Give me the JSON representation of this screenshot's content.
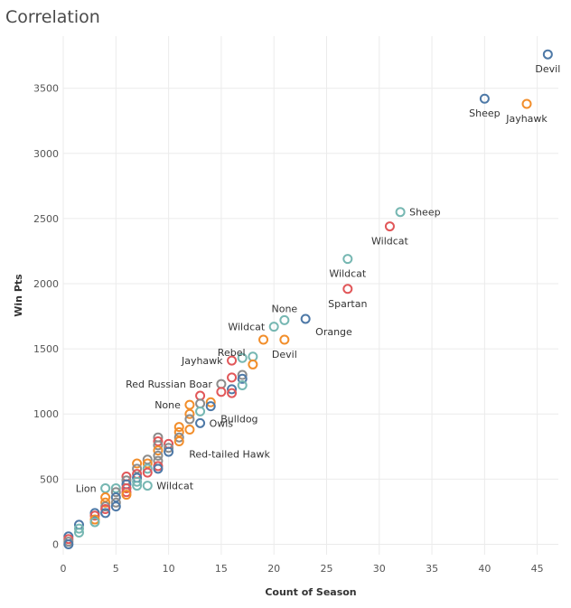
{
  "title": "Correlation",
  "colors": {
    "blue": "#4e79a7",
    "orange": "#f28e2b",
    "teal": "#76b7b2",
    "red": "#e15759",
    "gray": "#8c8c8c",
    "grid": "#ebebeb"
  },
  "chart_data": {
    "type": "scatter",
    "title": "Correlation",
    "xlabel": "Count of Season",
    "ylabel": "Win Pts",
    "xlim": [
      0,
      47
    ],
    "ylim": [
      -80,
      3900
    ],
    "xticks": [
      0,
      5,
      10,
      15,
      20,
      25,
      30,
      35,
      40,
      45
    ],
    "yticks": [
      0,
      500,
      1000,
      1500,
      2000,
      2500,
      3000,
      3500
    ],
    "grid": true,
    "marker": "hollow-circle",
    "points": [
      {
        "x": 46,
        "y": 3760,
        "color": "blue",
        "label": "Devil",
        "lpos": "below"
      },
      {
        "x": 40,
        "y": 3420,
        "color": "blue",
        "label": "Sheep",
        "lpos": "below"
      },
      {
        "x": 44,
        "y": 3380,
        "color": "orange",
        "label": "Jayhawk",
        "lpos": "below"
      },
      {
        "x": 32,
        "y": 2550,
        "color": "teal",
        "label": "Sheep",
        "lpos": "right"
      },
      {
        "x": 31,
        "y": 2440,
        "color": "red",
        "label": "Wildcat",
        "lpos": "below"
      },
      {
        "x": 27,
        "y": 2190,
        "color": "teal",
        "label": "Wildcat",
        "lpos": "below"
      },
      {
        "x": 27,
        "y": 1960,
        "color": "red",
        "label": "Spartan",
        "lpos": "below"
      },
      {
        "x": 23,
        "y": 1730,
        "color": "blue",
        "label": "Orange",
        "lpos": "belowright"
      },
      {
        "x": 21,
        "y": 1720,
        "color": "teal",
        "label": "None",
        "lpos": "above"
      },
      {
        "x": 20,
        "y": 1670,
        "color": "teal",
        "label": "Wildcat",
        "lpos": "left"
      },
      {
        "x": 21,
        "y": 1570,
        "color": "orange",
        "label": "Devil",
        "lpos": "below"
      },
      {
        "x": 19,
        "y": 1570,
        "color": "orange",
        "label": "Rebel",
        "lpos": "leftbelow"
      },
      {
        "x": 18,
        "y": 1440,
        "color": "teal",
        "label": "",
        "lpos": ""
      },
      {
        "x": 17,
        "y": 1430,
        "color": "teal",
        "label": "",
        "lpos": ""
      },
      {
        "x": 18,
        "y": 1380,
        "color": "orange",
        "label": "",
        "lpos": ""
      },
      {
        "x": 16,
        "y": 1410,
        "color": "red",
        "label": "Jayhawk",
        "lpos": "left"
      },
      {
        "x": 17,
        "y": 1300,
        "color": "gray",
        "label": "",
        "lpos": ""
      },
      {
        "x": 17,
        "y": 1270,
        "color": "blue",
        "label": "",
        "lpos": ""
      },
      {
        "x": 16,
        "y": 1280,
        "color": "red",
        "label": "",
        "lpos": ""
      },
      {
        "x": 15,
        "y": 1230,
        "color": "gray",
        "label": "Red Russian Boar",
        "lpos": "left"
      },
      {
        "x": 17,
        "y": 1220,
        "color": "teal",
        "label": "",
        "lpos": ""
      },
      {
        "x": 16,
        "y": 1190,
        "color": "blue",
        "label": "",
        "lpos": ""
      },
      {
        "x": 16,
        "y": 1160,
        "color": "red",
        "label": "",
        "lpos": ""
      },
      {
        "x": 15,
        "y": 1170,
        "color": "red",
        "label": "",
        "lpos": ""
      },
      {
        "x": 13,
        "y": 1140,
        "color": "red",
        "label": "",
        "lpos": ""
      },
      {
        "x": 14,
        "y": 1090,
        "color": "orange",
        "label": "",
        "lpos": ""
      },
      {
        "x": 13,
        "y": 1080,
        "color": "gray",
        "label": "",
        "lpos": ""
      },
      {
        "x": 14,
        "y": 1060,
        "color": "blue",
        "label": "Bulldog",
        "lpos": "belowright"
      },
      {
        "x": 12,
        "y": 1070,
        "color": "orange",
        "label": "None",
        "lpos": "left"
      },
      {
        "x": 13,
        "y": 1020,
        "color": "teal",
        "label": "",
        "lpos": ""
      },
      {
        "x": 12,
        "y": 1000,
        "color": "orange",
        "label": "",
        "lpos": ""
      },
      {
        "x": 13,
        "y": 930,
        "color": "blue",
        "label": "Owls",
        "lpos": "right"
      },
      {
        "x": 12,
        "y": 960,
        "color": "gray",
        "label": "",
        "lpos": ""
      },
      {
        "x": 12,
        "y": 880,
        "color": "orange",
        "label": "",
        "lpos": ""
      },
      {
        "x": 11,
        "y": 900,
        "color": "orange",
        "label": "",
        "lpos": ""
      },
      {
        "x": 11,
        "y": 860,
        "color": "orange",
        "label": "",
        "lpos": ""
      },
      {
        "x": 11,
        "y": 820,
        "color": "gray",
        "label": "",
        "lpos": ""
      },
      {
        "x": 11,
        "y": 790,
        "color": "orange",
        "label": "Red-tailed Hawk",
        "lpos": "belowright"
      },
      {
        "x": 10,
        "y": 770,
        "color": "red",
        "label": "",
        "lpos": ""
      },
      {
        "x": 10,
        "y": 740,
        "color": "gray",
        "label": "",
        "lpos": ""
      },
      {
        "x": 10,
        "y": 710,
        "color": "blue",
        "label": "",
        "lpos": ""
      },
      {
        "x": 9,
        "y": 820,
        "color": "gray",
        "label": "",
        "lpos": ""
      },
      {
        "x": 9,
        "y": 790,
        "color": "red",
        "label": "",
        "lpos": ""
      },
      {
        "x": 9,
        "y": 760,
        "color": "gray",
        "label": "",
        "lpos": ""
      },
      {
        "x": 9,
        "y": 720,
        "color": "orange",
        "label": "",
        "lpos": ""
      },
      {
        "x": 9,
        "y": 680,
        "color": "gray",
        "label": "",
        "lpos": ""
      },
      {
        "x": 9,
        "y": 640,
        "color": "gray",
        "label": "",
        "lpos": ""
      },
      {
        "x": 9,
        "y": 600,
        "color": "red",
        "label": "",
        "lpos": ""
      },
      {
        "x": 9,
        "y": 580,
        "color": "blue",
        "label": "",
        "lpos": ""
      },
      {
        "x": 8,
        "y": 650,
        "color": "gray",
        "label": "",
        "lpos": ""
      },
      {
        "x": 8,
        "y": 620,
        "color": "orange",
        "label": "",
        "lpos": ""
      },
      {
        "x": 8,
        "y": 580,
        "color": "teal",
        "label": "",
        "lpos": ""
      },
      {
        "x": 8,
        "y": 550,
        "color": "red",
        "label": "",
        "lpos": ""
      },
      {
        "x": 8,
        "y": 450,
        "color": "teal",
        "label": "Wildcat",
        "lpos": "right"
      },
      {
        "x": 7,
        "y": 620,
        "color": "orange",
        "label": "",
        "lpos": ""
      },
      {
        "x": 7,
        "y": 580,
        "color": "gray",
        "label": "",
        "lpos": ""
      },
      {
        "x": 7,
        "y": 540,
        "color": "red",
        "label": "",
        "lpos": ""
      },
      {
        "x": 7,
        "y": 510,
        "color": "blue",
        "label": "",
        "lpos": ""
      },
      {
        "x": 7,
        "y": 480,
        "color": "teal",
        "label": "",
        "lpos": ""
      },
      {
        "x": 7,
        "y": 450,
        "color": "teal",
        "label": "",
        "lpos": ""
      },
      {
        "x": 6,
        "y": 520,
        "color": "red",
        "label": "",
        "lpos": ""
      },
      {
        "x": 6,
        "y": 490,
        "color": "gray",
        "label": "",
        "lpos": ""
      },
      {
        "x": 6,
        "y": 460,
        "color": "blue",
        "label": "",
        "lpos": ""
      },
      {
        "x": 6,
        "y": 430,
        "color": "red",
        "label": "",
        "lpos": ""
      },
      {
        "x": 6,
        "y": 400,
        "color": "red",
        "label": "",
        "lpos": ""
      },
      {
        "x": 6,
        "y": 380,
        "color": "orange",
        "label": "",
        "lpos": ""
      },
      {
        "x": 5,
        "y": 430,
        "color": "teal",
        "label": "",
        "lpos": ""
      },
      {
        "x": 5,
        "y": 400,
        "color": "gray",
        "label": "",
        "lpos": ""
      },
      {
        "x": 5,
        "y": 360,
        "color": "blue",
        "label": "",
        "lpos": ""
      },
      {
        "x": 5,
        "y": 320,
        "color": "gray",
        "label": "",
        "lpos": ""
      },
      {
        "x": 5,
        "y": 290,
        "color": "blue",
        "label": "",
        "lpos": ""
      },
      {
        "x": 4,
        "y": 430,
        "color": "teal",
        "label": "Lion",
        "lpos": "left"
      },
      {
        "x": 4,
        "y": 360,
        "color": "orange",
        "label": "",
        "lpos": ""
      },
      {
        "x": 4,
        "y": 320,
        "color": "orange",
        "label": "",
        "lpos": ""
      },
      {
        "x": 4,
        "y": 290,
        "color": "gray",
        "label": "",
        "lpos": ""
      },
      {
        "x": 4,
        "y": 270,
        "color": "red",
        "label": "",
        "lpos": ""
      },
      {
        "x": 4,
        "y": 240,
        "color": "blue",
        "label": "",
        "lpos": ""
      },
      {
        "x": 3,
        "y": 240,
        "color": "blue",
        "label": "",
        "lpos": ""
      },
      {
        "x": 3,
        "y": 220,
        "color": "red",
        "label": "",
        "lpos": ""
      },
      {
        "x": 3,
        "y": 190,
        "color": "orange",
        "label": "",
        "lpos": ""
      },
      {
        "x": 3,
        "y": 170,
        "color": "teal",
        "label": "",
        "lpos": ""
      },
      {
        "x": 1.5,
        "y": 150,
        "color": "blue",
        "label": "",
        "lpos": ""
      },
      {
        "x": 1.5,
        "y": 120,
        "color": "teal",
        "label": "",
        "lpos": ""
      },
      {
        "x": 1.5,
        "y": 90,
        "color": "teal",
        "label": "",
        "lpos": ""
      },
      {
        "x": 0.5,
        "y": 60,
        "color": "blue",
        "label": "",
        "lpos": ""
      },
      {
        "x": 0.5,
        "y": 40,
        "color": "red",
        "label": "",
        "lpos": ""
      },
      {
        "x": 0.5,
        "y": 20,
        "color": "gray",
        "label": "",
        "lpos": ""
      },
      {
        "x": 0.5,
        "y": 0,
        "color": "blue",
        "label": "",
        "lpos": ""
      }
    ]
  }
}
